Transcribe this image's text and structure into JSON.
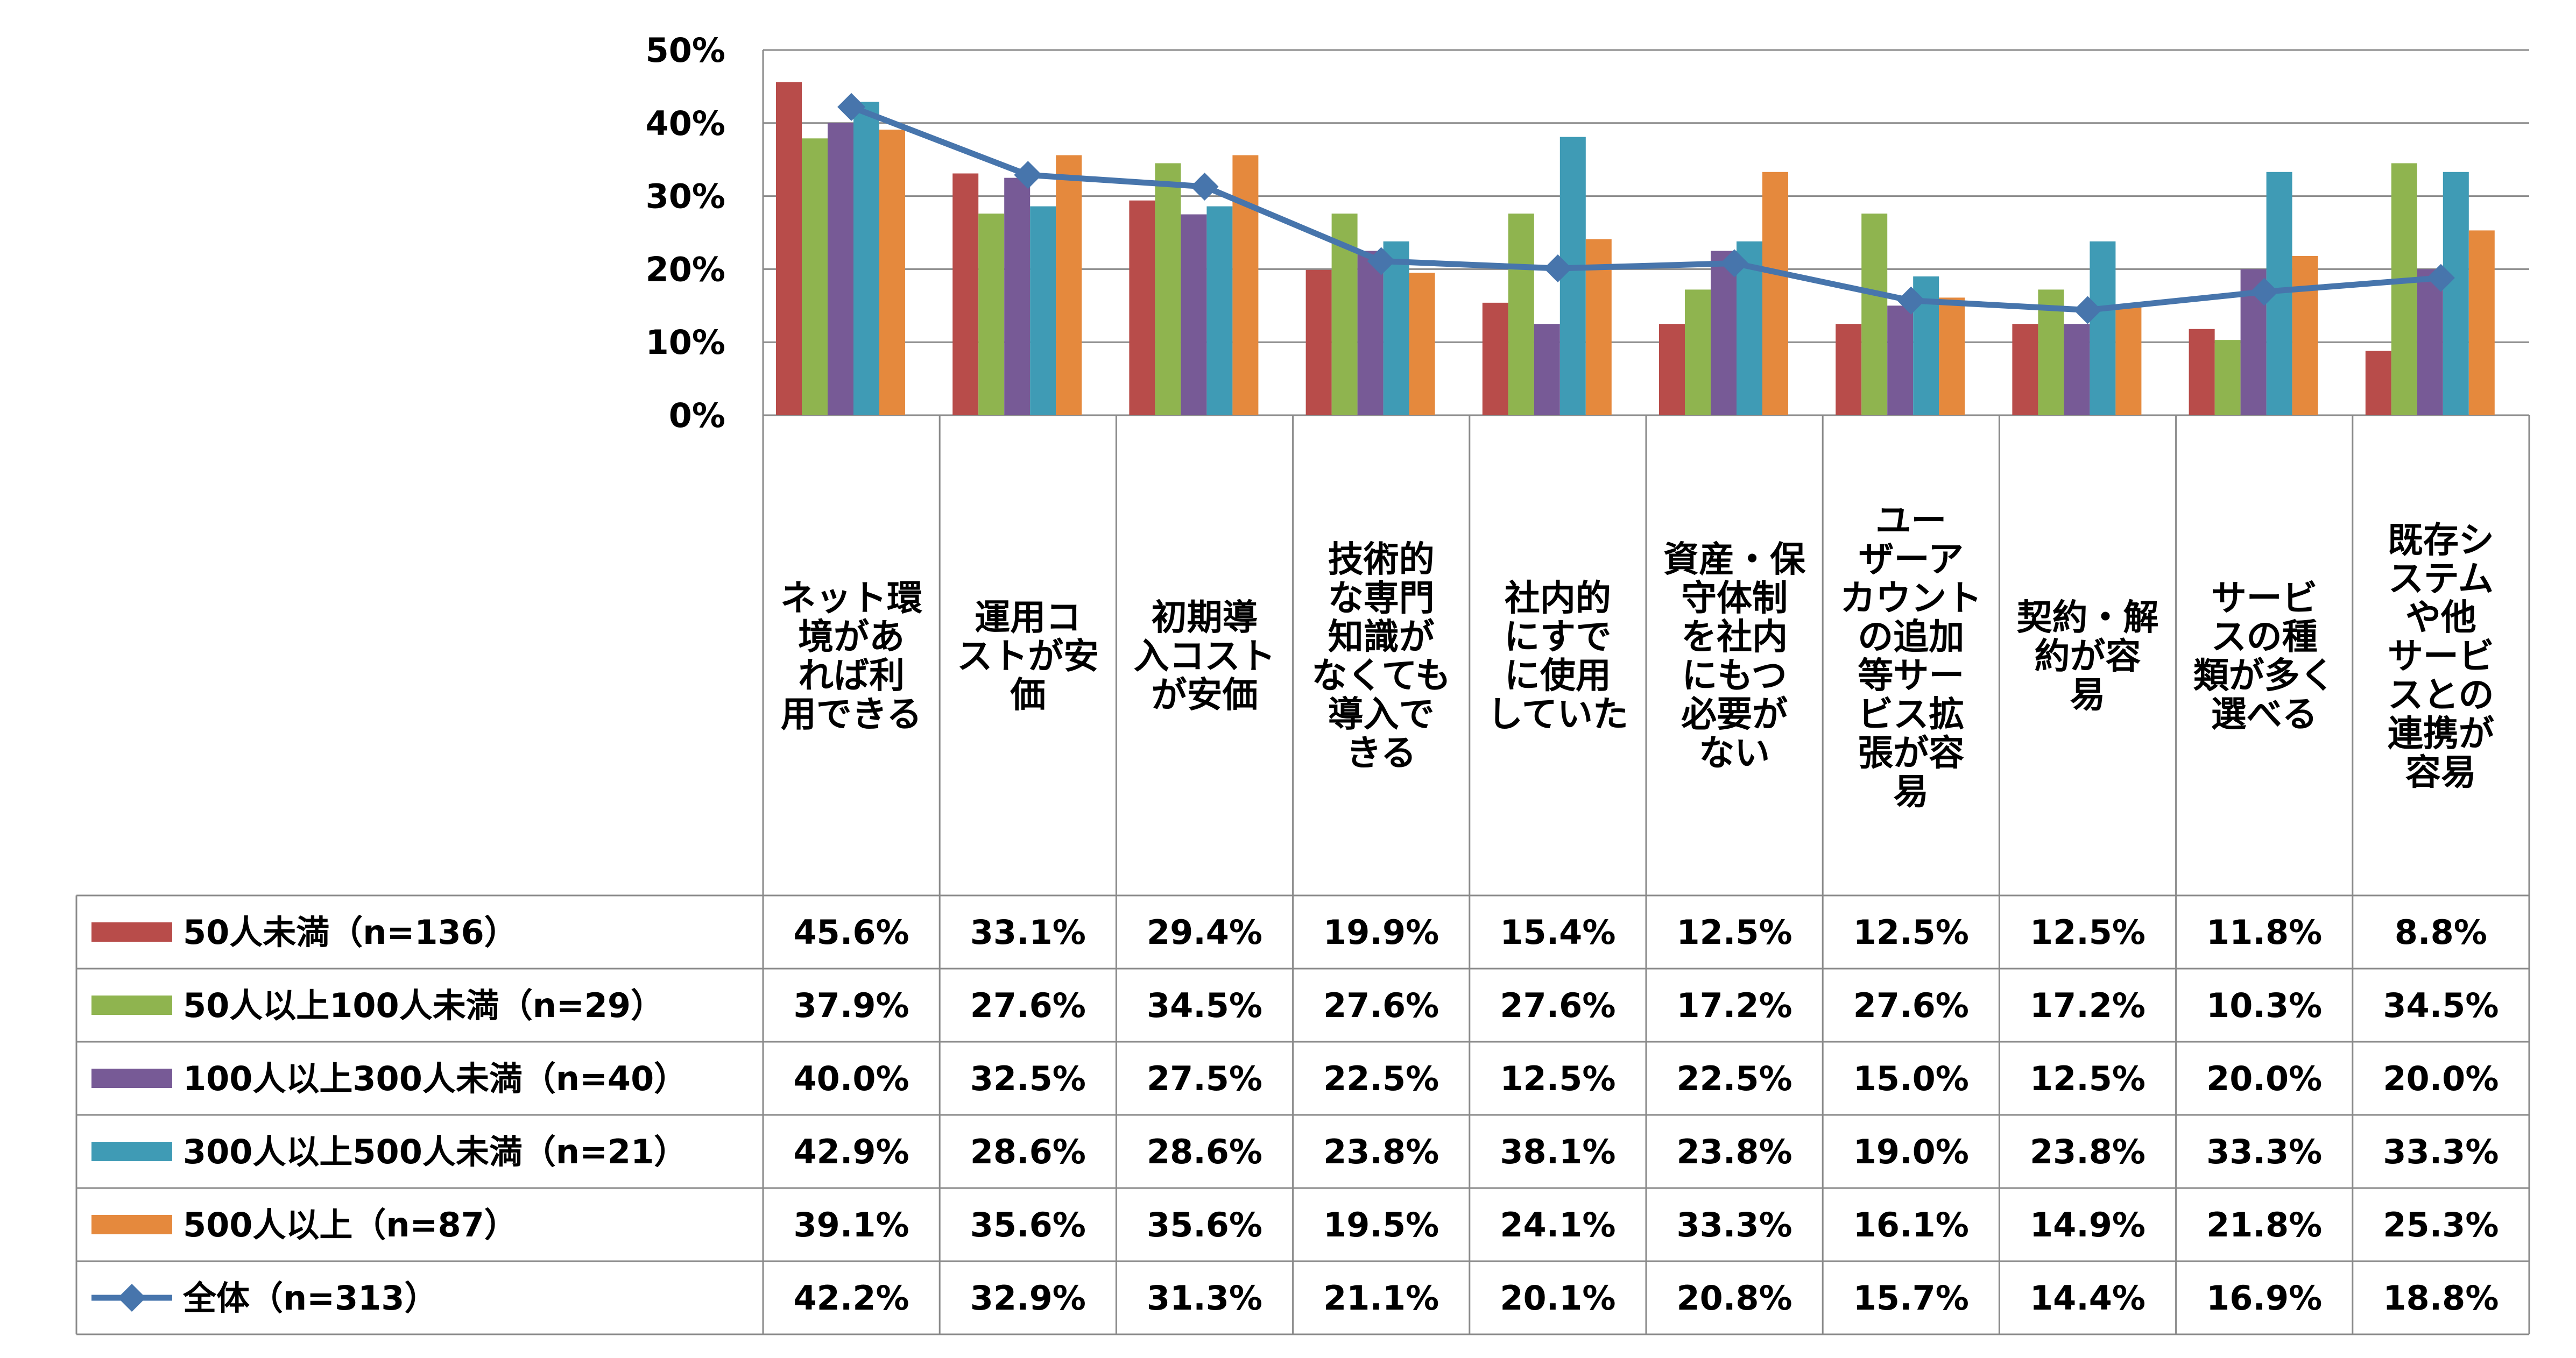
{
  "chart_data": {
    "type": "bar",
    "ylim": [
      0,
      50
    ],
    "yticks": [
      0,
      10,
      20,
      30,
      40,
      50
    ],
    "ytick_labels": [
      "0%",
      "10%",
      "20%",
      "30%",
      "40%",
      "50%"
    ],
    "categories": [
      [
        "ネット環",
        "境があ",
        "れば利",
        "用できる"
      ],
      [
        "運用コ",
        "ストが安",
        "価"
      ],
      [
        "初期導",
        "入コスト",
        "が安価"
      ],
      [
        "技術的",
        "な専門",
        "知識が",
        "なくても",
        "導入で",
        "きる"
      ],
      [
        "社内的",
        "にすで",
        "に使用",
        "していた"
      ],
      [
        "資産・保",
        "守体制",
        "を社内",
        "にもつ",
        "必要が",
        "ない"
      ],
      [
        "ユー",
        "ザーア",
        "カウント",
        "の追加",
        "等サー",
        "ビス拡",
        "張が容",
        "易"
      ],
      [
        "契約・解",
        "約が容",
        "易"
      ],
      [
        "サービ",
        "スの種",
        "類が多く",
        "選べる"
      ],
      [
        "既存シ",
        "ステム",
        "や他",
        "サービ",
        "スとの",
        "連携が",
        "容易"
      ]
    ],
    "series": [
      {
        "name": "50人未満（n=136）",
        "color": "#b84c4a",
        "values": [
          45.6,
          33.1,
          29.4,
          19.9,
          15.4,
          12.5,
          12.5,
          12.5,
          11.8,
          8.8
        ],
        "labels": [
          "45.6%",
          "33.1%",
          "29.4%",
          "19.9%",
          "15.4%",
          "12.5%",
          "12.5%",
          "12.5%",
          "11.8%",
          "8.8%"
        ]
      },
      {
        "name": "50人以上100人未満（n=29）",
        "color": "#8fb44f",
        "values": [
          37.9,
          27.6,
          34.5,
          27.6,
          27.6,
          17.2,
          27.6,
          17.2,
          10.3,
          34.5
        ],
        "labels": [
          "37.9%",
          "27.6%",
          "34.5%",
          "27.6%",
          "27.6%",
          "17.2%",
          "27.6%",
          "17.2%",
          "10.3%",
          "34.5%"
        ]
      },
      {
        "name": "100人以上300人未満（n=40）",
        "color": "#775a96",
        "values": [
          40.0,
          32.5,
          27.5,
          22.5,
          12.5,
          22.5,
          15.0,
          12.5,
          20.0,
          20.0
        ],
        "labels": [
          "40.0%",
          "32.5%",
          "27.5%",
          "22.5%",
          "12.5%",
          "22.5%",
          "15.0%",
          "12.5%",
          "20.0%",
          "20.0%"
        ]
      },
      {
        "name": "300人以上500人未満（n=21）",
        "color": "#3f9bb5",
        "values": [
          42.9,
          28.6,
          28.6,
          23.8,
          38.1,
          23.8,
          19.0,
          23.8,
          33.3,
          33.3
        ],
        "labels": [
          "42.9%",
          "28.6%",
          "28.6%",
          "23.8%",
          "38.1%",
          "23.8%",
          "19.0%",
          "23.8%",
          "33.3%",
          "33.3%"
        ]
      },
      {
        "name": "500人以上（n=87）",
        "color": "#e5893d",
        "values": [
          39.1,
          35.6,
          35.6,
          19.5,
          24.1,
          33.3,
          16.1,
          14.9,
          21.8,
          25.3
        ],
        "labels": [
          "39.1%",
          "35.6%",
          "35.6%",
          "19.5%",
          "24.1%",
          "33.3%",
          "16.1%",
          "14.9%",
          "21.8%",
          "25.3%"
        ]
      }
    ],
    "line_series": {
      "name": "全体（n=313）",
      "color": "#4775ac",
      "values": [
        42.2,
        32.9,
        31.3,
        21.1,
        20.1,
        20.8,
        15.7,
        14.4,
        16.9,
        18.8
      ],
      "labels": [
        "42.2%",
        "32.9%",
        "31.3%",
        "21.1%",
        "20.1%",
        "20.8%",
        "15.7%",
        "14.4%",
        "16.9%",
        "18.8%"
      ]
    },
    "grid": true,
    "legend": "data-table"
  }
}
